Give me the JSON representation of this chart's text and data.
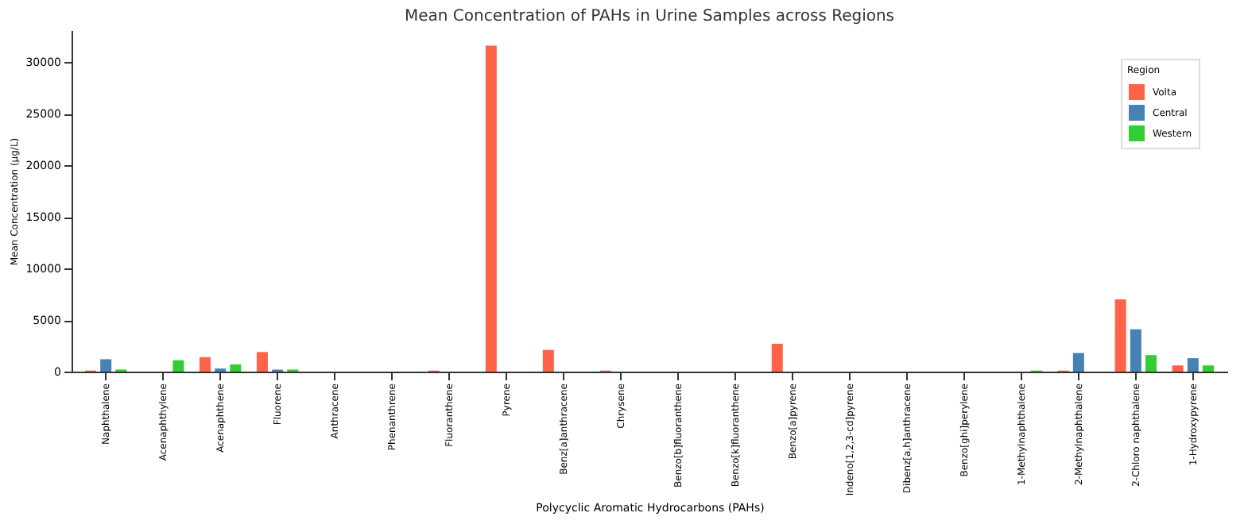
{
  "chart_data": {
    "type": "bar",
    "title": "Mean Concentration of PAHs in Urine Samples across Regions",
    "xlabel": "Polycyclic Aromatic Hydrocarbons (PAHs)",
    "ylabel": "Mean Concentration (µg/L)",
    "legend_title": "Region",
    "legend": "top right",
    "grid": false,
    "categories": [
      "Naphthalene",
      "Acenaphthylene",
      "Acenaphthene",
      "Fluorene",
      "Anthracene",
      "Phenanthrene",
      "Fluoranthene",
      "Pyrene",
      "Benz[a]anthracene",
      "Chrysene",
      "Benzo[b]fluoranthene",
      "Benzo[k]fluoranthene",
      "Benzo[a]pyrene",
      "Indeno[1,2,3-cd]pyrene",
      "Dibenz[a,h]anthracene",
      "Benzo[ghi]perylene",
      "1-Methylnaphthalene",
      "2-Methylnaphthalene",
      "2-Chloro naphthalene",
      "1-Hydroxypyrene"
    ],
    "series": [
      {
        "name": "Volta",
        "color": "#ff6347",
        "values": [
          100,
          0,
          1400,
          1900,
          0,
          0,
          100,
          31600,
          2100,
          100,
          0,
          0,
          2700,
          0,
          0,
          0,
          0,
          100,
          7000,
          600
        ]
      },
      {
        "name": "Central",
        "color": "#4682b4",
        "values": [
          1200,
          0,
          300,
          200,
          0,
          0,
          0,
          0,
          0,
          0,
          0,
          0,
          0,
          0,
          0,
          0,
          0,
          1800,
          4100,
          1300
        ]
      },
      {
        "name": "Western",
        "color": "#32cd32",
        "values": [
          200,
          1100,
          700,
          200,
          0,
          0,
          0,
          0,
          0,
          0,
          0,
          0,
          0,
          0,
          0,
          0,
          100,
          0,
          1600,
          600
        ]
      }
    ],
    "ylim": [
      0,
      33100
    ],
    "yticks": [
      0,
      5000,
      10000,
      15000,
      20000,
      25000,
      30000
    ]
  }
}
